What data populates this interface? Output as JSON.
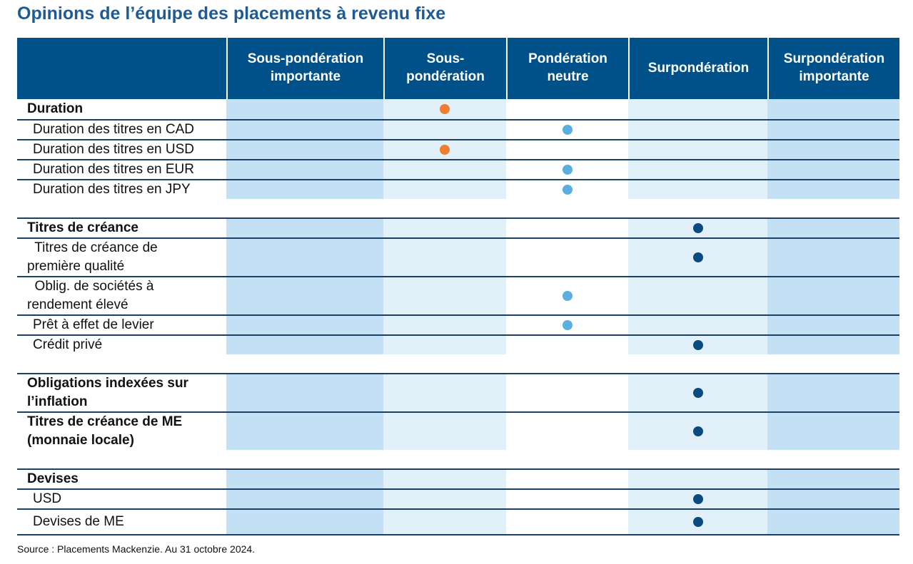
{
  "title": "Opinions de l’équipe des placements à revenu fixe",
  "columns": [
    "",
    "Sous-pondération importante",
    "Sous-pondération",
    "Pondération neutre",
    "Surpondération",
    "Surpondération importante"
  ],
  "column_lines": [
    [],
    [
      "Sous-pondération",
      "importante"
    ],
    [
      "Sous-",
      "pondération"
    ],
    [
      "Pondération",
      "neutre"
    ],
    [
      "Surpondération"
    ],
    [
      "Surpondération",
      "importante"
    ]
  ],
  "colors": {
    "header": "#00508a",
    "title": "#1f5a92",
    "underweight": "#ef7d32",
    "neutral": "#5aaee0",
    "overweight": "#0a4a80"
  },
  "rows": [
    {
      "label": "Duration",
      "bold": true,
      "position": 2,
      "color": "orange"
    },
    {
      "label": "Duration des titres en CAD",
      "position": 3,
      "color": "light"
    },
    {
      "label": "Duration des titres en USD",
      "position": 2,
      "color": "orange"
    },
    {
      "label": "Duration des titres en EUR",
      "position": 3,
      "color": "light"
    },
    {
      "label": "Duration des titres en JPY",
      "position": 3,
      "color": "light"
    },
    {
      "gap": true
    },
    {
      "label": "Titres de créance",
      "bold": true,
      "position": 4,
      "color": "dark"
    },
    {
      "label_lines": [
        "  Titres de créance de",
        "première qualité"
      ],
      "label": "Titres de créance de première qualité",
      "position": 4,
      "color": "dark"
    },
    {
      "label_lines": [
        "  Oblig. de sociétés à",
        "rendement élevé"
      ],
      "label": "Oblig. de sociétés à rendement élevé",
      "position": 3,
      "color": "light"
    },
    {
      "label": "Prêt à effet de levier",
      "position": 3,
      "color": "light"
    },
    {
      "label": "Crédit privé",
      "position": 4,
      "color": "dark"
    },
    {
      "gap": true
    },
    {
      "label_lines": [
        "Obligations indexées sur",
        "l’inflation"
      ],
      "label": "Obligations indexées sur l’inflation",
      "bold": true,
      "position": 4,
      "color": "dark"
    },
    {
      "label_lines": [
        "Titres de créance de ME",
        "(monnaie locale)"
      ],
      "label": "Titres de créance de ME (monnaie locale)",
      "bold": true,
      "position": 4,
      "color": "dark"
    },
    {
      "gap": true
    },
    {
      "label": "Devises",
      "bold": true,
      "position": null
    },
    {
      "label": "USD",
      "position": 4,
      "color": "dark"
    },
    {
      "label": "Devises de ME",
      "position": 4,
      "color": "dark"
    }
  ],
  "source": "Source : Placements Mackenzie. Au 31 octobre 2024."
}
